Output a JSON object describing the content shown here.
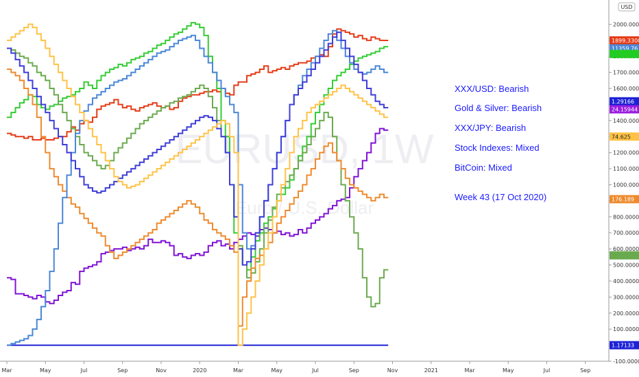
{
  "chart_data": {
    "type": "line",
    "step": true,
    "watermark": {
      "line1": "EURUSD, 1W",
      "line2": "Euro / U.S. Dollar"
    },
    "currency_tag": "USD",
    "ylim": [
      -100,
      2100
    ],
    "y_ticks": [
      {
        "v": 2000,
        "label": "2000.000000"
      },
      {
        "v": 1900,
        "label": "1900.000000"
      },
      {
        "v": 1800,
        "label": "1800.000000"
      },
      {
        "v": 1700,
        "label": "1700.000000"
      },
      {
        "v": 1600,
        "label": "1600.000000"
      },
      {
        "v": 1500,
        "label": "1500.000000"
      },
      {
        "v": 1400,
        "label": "1400.000000"
      },
      {
        "v": 1300,
        "label": "1300.000000"
      },
      {
        "v": 1200,
        "label": "1200.000000"
      },
      {
        "v": 1100,
        "label": "1100.000000"
      },
      {
        "v": 1000,
        "label": "1000.000000"
      },
      {
        "v": 900,
        "label": "900.000000"
      },
      {
        "v": 800,
        "label": "800.000000"
      },
      {
        "v": 700,
        "label": "700.000000"
      },
      {
        "v": 600,
        "label": "600.000000"
      },
      {
        "v": 500,
        "label": "500.000000"
      },
      {
        "v": 400,
        "label": "400.000000"
      },
      {
        "v": 300,
        "label": "300.000000"
      },
      {
        "v": 200,
        "label": "200.000000"
      },
      {
        "v": 100,
        "label": "100.000000"
      },
      {
        "v": 0,
        "label": "0.000000"
      },
      {
        "v": -100,
        "label": "-100.000000"
      }
    ],
    "x_ticks": [
      {
        "w": 0,
        "label": "Mar"
      },
      {
        "w": 9,
        "label": "May"
      },
      {
        "w": 18,
        "label": "Jul"
      },
      {
        "w": 27,
        "label": "Sep"
      },
      {
        "w": 36,
        "label": "Nov"
      },
      {
        "w": 45,
        "label": "2020"
      },
      {
        "w": 54,
        "label": "Mar"
      },
      {
        "w": 63,
        "label": "May"
      },
      {
        "w": 72,
        "label": "Jul"
      },
      {
        "w": 81,
        "label": "Sep"
      },
      {
        "w": 90,
        "label": "Nov"
      },
      {
        "w": 99,
        "label": "2021"
      },
      {
        "w": 108,
        "label": "Mar"
      },
      {
        "w": 117,
        "label": "May"
      },
      {
        "w": 126,
        "label": "Jul"
      },
      {
        "w": 135,
        "label": "Sep"
      }
    ],
    "series": [
      {
        "color": "#1e22d6",
        "values": [
          0,
          0,
          0,
          0,
          0,
          0,
          0,
          0,
          0,
          0,
          0,
          0,
          0,
          0,
          0,
          0,
          0,
          0,
          0,
          0,
          0,
          0,
          0,
          0,
          0,
          0,
          0,
          0,
          0,
          0,
          0,
          0,
          0,
          0,
          0,
          0,
          0,
          0,
          0,
          0,
          0,
          0,
          0,
          0,
          0,
          0,
          0,
          0,
          0,
          0,
          0,
          0,
          0,
          0,
          0,
          0,
          0,
          0,
          0,
          0,
          0,
          0,
          0,
          0,
          0,
          0,
          0,
          0,
          0,
          0,
          0,
          0,
          0,
          0,
          0,
          0,
          0,
          0,
          0,
          0,
          0,
          0,
          0,
          0,
          0,
          0,
          0,
          0,
          0
        ]
      },
      {
        "color": "#e53b17",
        "values": [
          1320,
          1310,
          1300,
          1300,
          1290,
          1300,
          1280,
          1280,
          1290,
          1280,
          1280,
          1290,
          1300,
          1300,
          1330,
          1360,
          1340,
          1380,
          1400,
          1390,
          1420,
          1470,
          1490,
          1500,
          1510,
          1530,
          1500,
          1480,
          1490,
          1470,
          1460,
          1480,
          1490,
          1500,
          1510,
          1490,
          1480,
          1490,
          1470,
          1480,
          1520,
          1540,
          1550,
          1560,
          1560,
          1570,
          1580,
          1580,
          1590,
          1580,
          1600,
          1570,
          1560,
          1620,
          1640,
          1640,
          1680,
          1690,
          1700,
          1720,
          1740,
          1700,
          1710,
          1720,
          1730,
          1720,
          1740,
          1750,
          1760,
          1760,
          1770,
          1790,
          1800,
          1810,
          1800,
          1860,
          1940,
          1970,
          1960,
          1950,
          1940,
          1920,
          1930,
          1910,
          1900,
          1920,
          1910,
          1900,
          1899
        ]
      },
      {
        "color": "#7f12d6",
        "values": [
          420,
          410,
          320,
          320,
          310,
          300,
          290,
          310,
          300,
          270,
          260,
          280,
          310,
          330,
          340,
          390,
          380,
          460,
          480,
          490,
          500,
          520,
          570,
          580,
          590,
          600,
          600,
          610,
          590,
          600,
          610,
          600,
          620,
          660,
          640,
          640,
          650,
          640,
          620,
          560,
          570,
          550,
          540,
          560,
          570,
          560,
          580,
          620,
          640,
          650,
          620,
          630,
          600,
          640,
          660,
          680,
          700,
          690,
          680,
          720,
          730,
          720,
          700,
          710,
          690,
          700,
          680,
          690,
          720,
          700,
          730,
          760,
          780,
          800,
          820,
          850,
          870,
          900,
          910,
          920,
          980,
          1050,
          1100,
          1150,
          1200,
          1260,
          1320,
          1350,
          1340
        ]
      },
      {
        "color": "#33cc33",
        "values": [
          1420,
          1450,
          1480,
          1510,
          1530,
          1560,
          1550,
          1500,
          1480,
          1470,
          1490,
          1500,
          1520,
          1540,
          1550,
          1560,
          1580,
          1600,
          1640,
          1620,
          1600,
          1650,
          1680,
          1700,
          1720,
          1730,
          1750,
          1740,
          1760,
          1780,
          1790,
          1800,
          1820,
          1830,
          1850,
          1870,
          1880,
          1900,
          1920,
          1940,
          1950,
          1970,
          1990,
          2010,
          2000,
          1980,
          1930,
          1800,
          1700,
          1600,
          1400,
          1300,
          1000,
          700,
          600,
          500,
          470,
          550,
          650,
          700,
          760,
          800,
          850,
          900,
          940,
          980,
          1030,
          1100,
          1180,
          1240,
          1300,
          1380,
          1450,
          1500,
          1560,
          1600,
          1650,
          1680,
          1700,
          1720,
          1750,
          1770,
          1790,
          1800,
          1810,
          1820,
          1830,
          1850,
          1860
        ]
      },
      {
        "color": "#6aaa4e",
        "values": [
          1850,
          1840,
          1820,
          1800,
          1790,
          1760,
          1740,
          1700,
          1680,
          1650,
          1600,
          1560,
          1500,
          1450,
          1400,
          1350,
          1300,
          1250,
          1200,
          1180,
          1150,
          1120,
          1100,
          1120,
          1150,
          1200,
          1230,
          1260,
          1290,
          1320,
          1350,
          1380,
          1400,
          1420,
          1440,
          1460,
          1480,
          1490,
          1510,
          1520,
          1540,
          1550,
          1560,
          1580,
          1600,
          1620,
          1600,
          1550,
          1480,
          1400,
          1300,
          1200,
          1000,
          800,
          620,
          500,
          420,
          450,
          520,
          600,
          700,
          780,
          860,
          940,
          980,
          1020,
          1060,
          1100,
          1150,
          1200,
          1250,
          1300,
          1350,
          1400,
          1450,
          1420,
          1300,
          1150,
          1000,
          900,
          800,
          700,
          600,
          420,
          300,
          240,
          260,
          420,
          470
        ]
      },
      {
        "color": "#ee8a2e",
        "values": [
          1720,
          1700,
          1680,
          1650,
          1600,
          1560,
          1500,
          1420,
          1300,
          1200,
          1100,
          1050,
          1000,
          960,
          920,
          880,
          860,
          820,
          790,
          760,
          730,
          700,
          680,
          620,
          580,
          540,
          560,
          580,
          600,
          620,
          640,
          660,
          680,
          700,
          720,
          760,
          780,
          800,
          820,
          840,
          860,
          880,
          900,
          880,
          860,
          820,
          780,
          760,
          720,
          700,
          680,
          660,
          620,
          580,
          120,
          300,
          400,
          480,
          540,
          560,
          600,
          640,
          700,
          760,
          800,
          840,
          880,
          920,
          960,
          1000,
          1060,
          1100,
          1160,
          1200,
          1240,
          1260,
          1200,
          1150,
          1100,
          1040,
          1000,
          980,
          960,
          940,
          920,
          900,
          920,
          940,
          920
        ]
      },
      {
        "color": "#4a86d8",
        "values": [
          0,
          10,
          20,
          30,
          40,
          60,
          100,
          160,
          240,
          340,
          460,
          600,
          760,
          920,
          1060,
          1200,
          1320,
          1400,
          1460,
          1500,
          1540,
          1560,
          1580,
          1600,
          1620,
          1640,
          1650,
          1660,
          1680,
          1700,
          1720,
          1740,
          1760,
          1780,
          1800,
          1820,
          1830,
          1840,
          1860,
          1880,
          1900,
          1910,
          1920,
          1930,
          1900,
          1850,
          1800,
          1760,
          1700,
          1650,
          1600,
          1550,
          1500,
          1450,
          1000,
          700,
          600,
          620,
          700,
          800,
          900,
          1000,
          1100,
          1200,
          1300,
          1400,
          1500,
          1560,
          1620,
          1680,
          1720,
          1760,
          1800,
          1850,
          1900,
          1940,
          1960,
          1900,
          1850,
          1800,
          1760,
          1720,
          1700,
          1690,
          1700,
          1720,
          1740,
          1720,
          1700
        ]
      },
      {
        "color": "#3d3dd8",
        "values": [
          1850,
          1820,
          1780,
          1740,
          1700,
          1650,
          1600,
          1550,
          1500,
          1450,
          1400,
          1350,
          1300,
          1250,
          1200,
          1150,
          1100,
          1050,
          1000,
          980,
          960,
          950,
          960,
          980,
          1000,
          1020,
          1040,
          1060,
          1080,
          1100,
          1120,
          1140,
          1160,
          1180,
          1200,
          1220,
          1240,
          1260,
          1280,
          1300,
          1320,
          1340,
          1360,
          1380,
          1400,
          1420,
          1430,
          1420,
          1400,
          1350,
          1300,
          1200,
          1000,
          800,
          600,
          500,
          520,
          600,
          700,
          800,
          900,
          1000,
          1100,
          1200,
          1300,
          1400,
          1500,
          1560,
          1600,
          1640,
          1680,
          1720,
          1760,
          1800,
          1840,
          1880,
          1920,
          1950,
          1900,
          1850,
          1800,
          1750,
          1700,
          1650,
          1600,
          1560,
          1520,
          1500,
          1480
        ]
      },
      {
        "color": "#ffc246",
        "values": [
          1900,
          1920,
          1940,
          1960,
          1980,
          2000,
          1980,
          1940,
          1900,
          1850,
          1800,
          1750,
          1700,
          1650,
          1600,
          1550,
          1500,
          1450,
          1400,
          1350,
          1300,
          1250,
          1200,
          1150,
          1100,
          1050,
          1020,
          1000,
          980,
          990,
          1000,
          1020,
          1040,
          1060,
          1080,
          1100,
          1120,
          1140,
          1160,
          1180,
          1200,
          1220,
          1240,
          1260,
          1280,
          1300,
          1320,
          1340,
          1360,
          1380,
          1400,
          1380,
          1300,
          1200,
          0,
          100,
          200,
          300,
          400,
          500,
          600,
          700,
          800,
          900,
          1000,
          1100,
          1200,
          1300,
          1350,
          1400,
          1450,
          1480,
          1500,
          1520,
          1540,
          1560,
          1580,
          1600,
          1620,
          1600,
          1580,
          1560,
          1540,
          1520,
          1500,
          1480,
          1460,
          1440,
          1420
        ]
      }
    ],
    "price_badges": [
      {
        "text": "1899.33000",
        "v": 1899.33,
        "bg": "#e53b17",
        "fg": "#ffffff"
      },
      {
        "text": "11359.76",
        "v": 1850,
        "bg": "#4a86d8",
        "fg": "#ffffff"
      },
      {
        "text": "",
        "v": 1815,
        "bg": "#22cc22",
        "fg": "#ffffff"
      },
      {
        "text": "1.29166",
        "v": 1520,
        "bg": "#1e22d6",
        "fg": "#ffffff"
      },
      {
        "text": "24.15944",
        "v": 1470,
        "bg": "#9b1de0",
        "fg": "#ffffff"
      },
      {
        "text": "74.625",
        "v": 1300,
        "bg": "#ffc246",
        "fg": "#222222"
      },
      {
        "text": "176.189",
        "v": 910,
        "bg": "#ee8a2e",
        "fg": "#ffffff"
      },
      {
        "text": "",
        "v": 560,
        "bg": "#6aaa4e",
        "fg": "#ffffff"
      },
      {
        "text": "1.17133",
        "v": 0,
        "bg": "#1e22d6",
        "fg": "#ffffff"
      }
    ],
    "annotations": [
      "XXX/USD: Bearish",
      "Gold & Silver: Bearish",
      "XXX/JPY: Bearish",
      "Stock Indexes:  Mixed",
      "BitCoin: Mixed",
      "Week 43 (17 Oct 2020)"
    ]
  }
}
